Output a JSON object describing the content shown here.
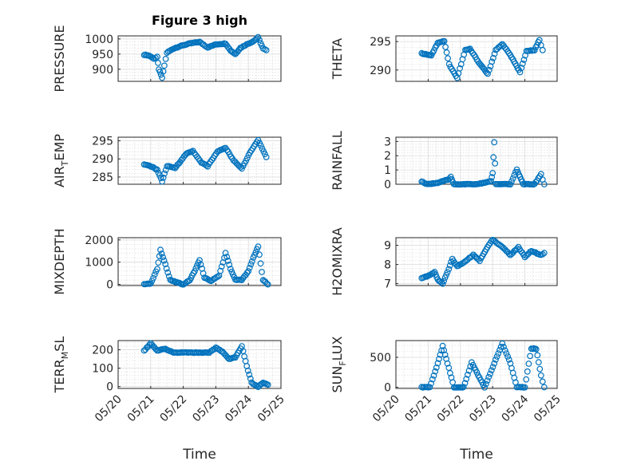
{
  "figure": {
    "title": "Figure 3 high",
    "xlabel": "Time"
  },
  "date_ticks": [
    "05/20",
    "05/21",
    "05/22",
    "05/23",
    "05/24",
    "05/25"
  ],
  "marker_color": "#0072bd",
  "chart_data": [
    {
      "id": "pressure",
      "type": "scatter",
      "ylabel": "PRESSURE",
      "ylim": [
        860,
        1010
      ],
      "yticks": [
        900,
        950,
        1000
      ],
      "x_range_days": [
        0,
        5
      ],
      "seg": [
        [
          0.8,
          948
        ],
        [
          0.95,
          945
        ],
        [
          1.1,
          935
        ],
        [
          1.2,
          940
        ],
        [
          1.25,
          900
        ],
        [
          1.35,
          872
        ],
        [
          1.42,
          912
        ],
        [
          1.5,
          955
        ],
        [
          1.7,
          968
        ],
        [
          1.9,
          976
        ],
        [
          2.2,
          985
        ],
        [
          2.5,
          990
        ],
        [
          2.75,
          972
        ],
        [
          3.0,
          982
        ],
        [
          3.3,
          985
        ],
        [
          3.45,
          962
        ],
        [
          3.6,
          950
        ],
        [
          3.75,
          970
        ],
        [
          3.95,
          982
        ],
        [
          4.15,
          992
        ],
        [
          4.3,
          1005
        ],
        [
          4.45,
          968
        ],
        [
          4.55,
          963
        ]
      ],
      "grid": true
    },
    {
      "id": "theta",
      "type": "scatter",
      "ylabel": "THETA",
      "ylim": [
        288,
        296
      ],
      "yticks": [
        290,
        295
      ],
      "seg": [
        [
          0.8,
          292.9
        ],
        [
          1.1,
          292.6
        ],
        [
          1.3,
          294.8
        ],
        [
          1.5,
          295.1
        ],
        [
          1.65,
          291
        ],
        [
          1.9,
          288.6
        ],
        [
          2.15,
          293.5
        ],
        [
          2.3,
          293.7
        ],
        [
          2.55,
          291.5
        ],
        [
          2.85,
          289.3
        ],
        [
          3.1,
          293.5
        ],
        [
          3.3,
          294.6
        ],
        [
          3.55,
          292.6
        ],
        [
          3.85,
          289.6
        ],
        [
          4.05,
          293.3
        ],
        [
          4.3,
          293.5
        ],
        [
          4.45,
          295.3
        ],
        [
          4.55,
          293.5
        ]
      ],
      "grid": true
    },
    {
      "id": "airtemp",
      "type": "scatter",
      "ylabel": "AIR_TEMP",
      "ylim": [
        283,
        296
      ],
      "yticks": [
        285,
        290,
        295
      ],
      "seg": [
        [
          0.8,
          288.4
        ],
        [
          1.0,
          288
        ],
        [
          1.2,
          287
        ],
        [
          1.35,
          283.8
        ],
        [
          1.5,
          288
        ],
        [
          1.75,
          287.5
        ],
        [
          2.1,
          291.5
        ],
        [
          2.3,
          292.2
        ],
        [
          2.55,
          289
        ],
        [
          2.75,
          288
        ],
        [
          3.05,
          292
        ],
        [
          3.3,
          293.1
        ],
        [
          3.55,
          289.5
        ],
        [
          3.8,
          287.3
        ],
        [
          4.05,
          291.8
        ],
        [
          4.3,
          295.2
        ],
        [
          4.55,
          290.5
        ]
      ],
      "grid": true
    },
    {
      "id": "rainfall",
      "type": "scatter",
      "ylabel": "RAINFALL",
      "ylim": [
        0,
        3.3
      ],
      "yticks": [
        0,
        1,
        2,
        3
      ],
      "seg": [
        [
          0.8,
          0.2
        ],
        [
          0.95,
          0
        ],
        [
          1.3,
          0.1
        ],
        [
          1.5,
          0.25
        ],
        [
          1.62,
          0.3
        ],
        [
          1.7,
          0.5
        ],
        [
          1.8,
          0
        ],
        [
          2.5,
          0
        ],
        [
          2.95,
          0.2
        ],
        [
          3.0,
          0.8
        ],
        [
          3.05,
          2.95
        ],
        [
          3.1,
          0
        ],
        [
          3.55,
          0
        ],
        [
          3.75,
          1.05
        ],
        [
          3.85,
          0.5
        ],
        [
          3.95,
          0
        ],
        [
          4.3,
          0
        ],
        [
          4.5,
          0.7
        ],
        [
          4.6,
          0
        ]
      ],
      "grid": true
    },
    {
      "id": "mixdepth",
      "type": "scatter",
      "ylabel": "MIXDEPTH",
      "ylim": [
        -50,
        2100
      ],
      "yticks": [
        0,
        1000,
        2000
      ],
      "seg": [
        [
          0.8,
          0
        ],
        [
          1.0,
          30
        ],
        [
          1.2,
          700
        ],
        [
          1.3,
          1550
        ],
        [
          1.45,
          900
        ],
        [
          1.6,
          200
        ],
        [
          1.8,
          100
        ],
        [
          2.0,
          0
        ],
        [
          2.2,
          200
        ],
        [
          2.35,
          600
        ],
        [
          2.5,
          1100
        ],
        [
          2.65,
          300
        ],
        [
          2.85,
          150
        ],
        [
          3.1,
          400
        ],
        [
          3.3,
          1400
        ],
        [
          3.45,
          700
        ],
        [
          3.6,
          200
        ],
        [
          3.8,
          200
        ],
        [
          4.0,
          600
        ],
        [
          4.15,
          1200
        ],
        [
          4.3,
          1700
        ],
        [
          4.45,
          200
        ],
        [
          4.6,
          0
        ]
      ],
      "grid": true
    },
    {
      "id": "h2omixra",
      "type": "scatter",
      "ylabel": "H2OMIXRA",
      "ylim": [
        6.9,
        9.4
      ],
      "yticks": [
        7,
        8,
        9
      ],
      "seg": [
        [
          0.8,
          7.3
        ],
        [
          1.0,
          7.4
        ],
        [
          1.2,
          7.6
        ],
        [
          1.3,
          7.2
        ],
        [
          1.45,
          7.0
        ],
        [
          1.6,
          7.6
        ],
        [
          1.75,
          8.3
        ],
        [
          1.9,
          7.9
        ],
        [
          2.1,
          8.1
        ],
        [
          2.4,
          8.5
        ],
        [
          2.6,
          8.2
        ],
        [
          2.8,
          8.8
        ],
        [
          3.0,
          9.3
        ],
        [
          3.3,
          8.9
        ],
        [
          3.55,
          8.5
        ],
        [
          3.8,
          8.9
        ],
        [
          4.0,
          8.4
        ],
        [
          4.2,
          8.7
        ],
        [
          4.5,
          8.5
        ],
        [
          4.6,
          8.6
        ]
      ],
      "grid": true
    },
    {
      "id": "terrmsl",
      "type": "scatter",
      "ylabel": "TERR_MSL",
      "ylim": [
        -10,
        250
      ],
      "yticks": [
        0,
        100,
        200
      ],
      "seg": [
        [
          0.8,
          195
        ],
        [
          1.0,
          235
        ],
        [
          1.2,
          195
        ],
        [
          1.45,
          205
        ],
        [
          1.7,
          185
        ],
        [
          2.5,
          185
        ],
        [
          2.8,
          185
        ],
        [
          3.0,
          210
        ],
        [
          3.2,
          190
        ],
        [
          3.4,
          150
        ],
        [
          3.6,
          160
        ],
        [
          3.8,
          220
        ],
        [
          3.95,
          110
        ],
        [
          4.1,
          20
        ],
        [
          4.3,
          0
        ],
        [
          4.45,
          20
        ],
        [
          4.6,
          10
        ]
      ],
      "grid": true
    },
    {
      "id": "sunflux",
      "type": "scatter",
      "ylabel": "SUN_FLUX",
      "ylim": [
        -20,
        780
      ],
      "yticks": [
        0,
        500
      ],
      "seg": [
        [
          0.8,
          0
        ],
        [
          1.05,
          0
        ],
        [
          1.3,
          400
        ],
        [
          1.45,
          690
        ],
        [
          1.6,
          400
        ],
        [
          1.8,
          0
        ],
        [
          2.1,
          0
        ],
        [
          2.35,
          420
        ],
        [
          2.55,
          200
        ],
        [
          2.75,
          0
        ],
        [
          3.05,
          400
        ],
        [
          3.3,
          730
        ],
        [
          3.55,
          400
        ],
        [
          3.75,
          0
        ],
        [
          4.0,
          0
        ],
        [
          4.2,
          650
        ],
        [
          4.35,
          640
        ],
        [
          4.5,
          200
        ],
        [
          4.6,
          0
        ]
      ],
      "grid": true
    }
  ]
}
